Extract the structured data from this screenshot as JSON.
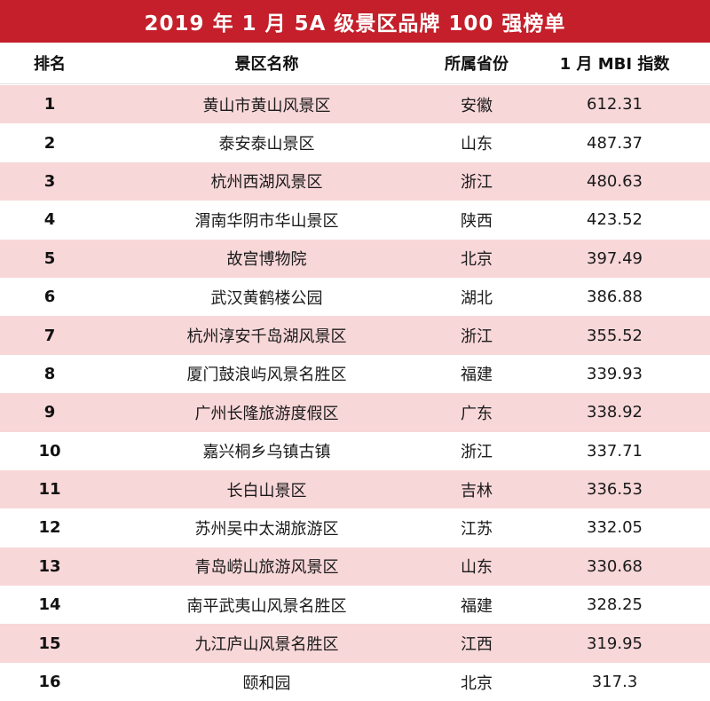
{
  "title": "2019 年 1 月 5A 级景区品牌 100 强榜单",
  "headers": {
    "rank": "排名",
    "name": "景区名称",
    "province": "所属省份",
    "index": "1 月 MBI 指数"
  },
  "rows": [
    {
      "rank": "1",
      "name": "黄山市黄山风景区",
      "province": "安徽",
      "index": "612.31"
    },
    {
      "rank": "2",
      "name": "泰安泰山景区",
      "province": "山东",
      "index": "487.37"
    },
    {
      "rank": "3",
      "name": "杭州西湖风景区",
      "province": "浙江",
      "index": "480.63"
    },
    {
      "rank": "4",
      "name": "渭南华阴市华山景区",
      "province": "陕西",
      "index": "423.52"
    },
    {
      "rank": "5",
      "name": "故宫博物院",
      "province": "北京",
      "index": "397.49"
    },
    {
      "rank": "6",
      "name": "武汉黄鹤楼公园",
      "province": "湖北",
      "index": "386.88"
    },
    {
      "rank": "7",
      "name": "杭州淳安千岛湖风景区",
      "province": "浙江",
      "index": "355.52"
    },
    {
      "rank": "8",
      "name": "厦门鼓浪屿风景名胜区",
      "province": "福建",
      "index": "339.93"
    },
    {
      "rank": "9",
      "name": "广州长隆旅游度假区",
      "province": "广东",
      "index": "338.92"
    },
    {
      "rank": "10",
      "name": "嘉兴桐乡乌镇古镇",
      "province": "浙江",
      "index": "337.71"
    },
    {
      "rank": "11",
      "name": "长白山景区",
      "province": "吉林",
      "index": "336.53"
    },
    {
      "rank": "12",
      "name": "苏州吴中太湖旅游区",
      "province": "江苏",
      "index": "332.05"
    },
    {
      "rank": "13",
      "name": "青岛崂山旅游风景区",
      "province": "山东",
      "index": "330.68"
    },
    {
      "rank": "14",
      "name": "南平武夷山风景名胜区",
      "province": "福建",
      "index": "328.25"
    },
    {
      "rank": "15",
      "name": "九江庐山风景名胜区",
      "province": "江西",
      "index": "319.95"
    },
    {
      "rank": "16",
      "name": "颐和园",
      "province": "北京",
      "index": "317.3"
    }
  ],
  "colors": {
    "title_bg": "#c41f2a",
    "stripe": "#f8d7d9"
  }
}
